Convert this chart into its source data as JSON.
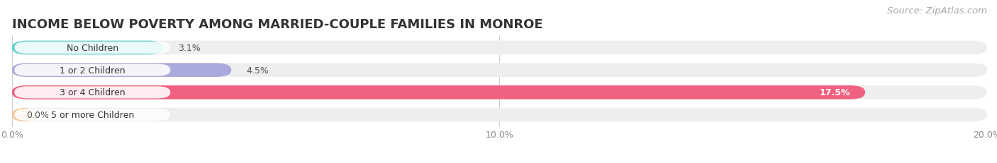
{
  "title": "INCOME BELOW POVERTY AMONG MARRIED-COUPLE FAMILIES IN MONROE",
  "source": "Source: ZipAtlas.com",
  "categories": [
    "No Children",
    "1 or 2 Children",
    "3 or 4 Children",
    "5 or more Children"
  ],
  "values": [
    3.1,
    4.5,
    17.5,
    0.0
  ],
  "bar_colors": [
    "#5ecfcf",
    "#aaaadd",
    "#f06080",
    "#f5c898"
  ],
  "bar_bg_color": "#eeeeee",
  "label_colors": [
    "#333333",
    "#333333",
    "#ffffff",
    "#333333"
  ],
  "xlim": [
    0,
    20.0
  ],
  "xticks": [
    0.0,
    10.0,
    20.0
  ],
  "xtick_labels": [
    "0.0%",
    "10.0%",
    "20.0%"
  ],
  "title_fontsize": 13,
  "source_fontsize": 9.5,
  "tick_fontsize": 9,
  "bar_label_fontsize": 9,
  "category_fontsize": 9,
  "bar_height": 0.62,
  "background_color": "#ffffff",
  "value_label_dark": "#555555"
}
